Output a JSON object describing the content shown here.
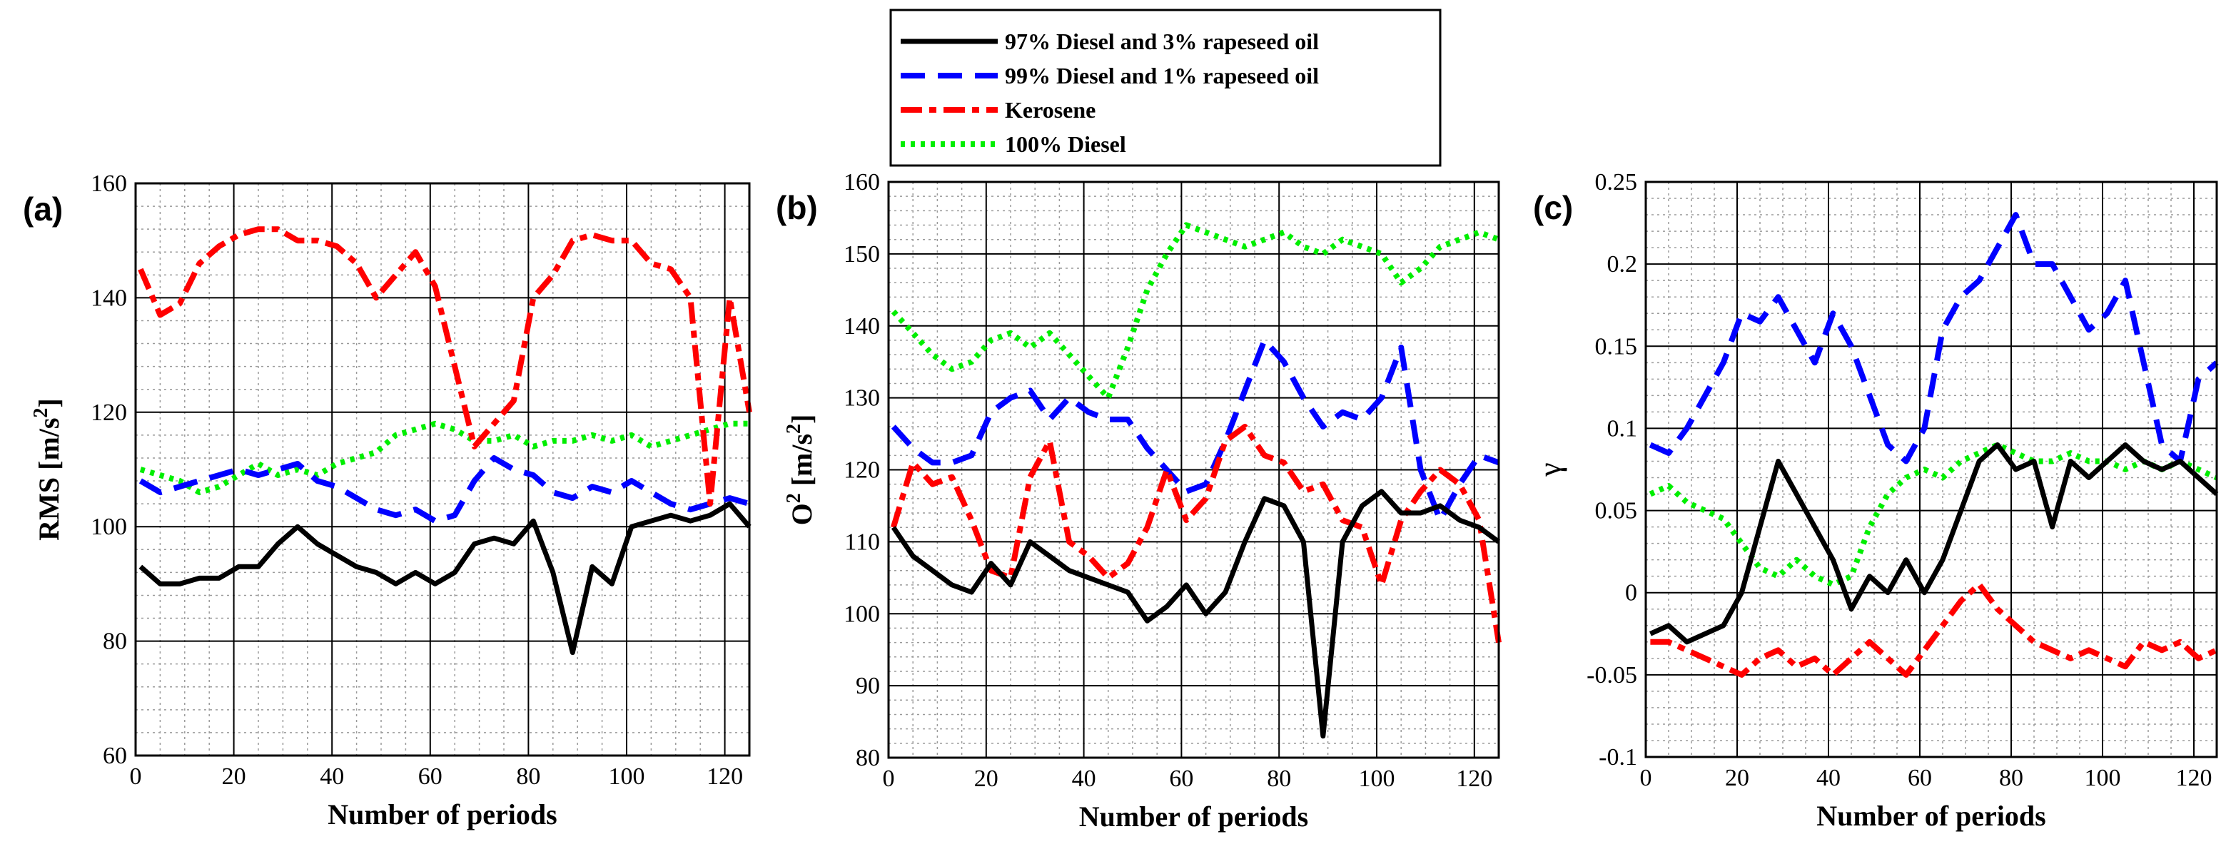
{
  "colors": {
    "diesel97": "#000000",
    "diesel99": "#0000ff",
    "kerosene": "#ff0000",
    "diesel100": "#00ee00"
  },
  "legend": [
    {
      "key": "diesel97",
      "label": "97% Diesel and 3% rapeseed oil",
      "style": "solid"
    },
    {
      "key": "diesel99",
      "label": "99% Diesel and 1% rapeseed oil",
      "style": "dashed"
    },
    {
      "key": "kerosene",
      "label": "Kerosene",
      "style": "dashdot"
    },
    {
      "key": "diesel100",
      "label": "100% Diesel",
      "style": "dotted"
    }
  ],
  "chart_data": [
    {
      "id": "a",
      "panel_label": "(a)",
      "type": "line",
      "xlabel": "Number of periods",
      "ylabel": "RMS [m/s",
      "ylabel_sup": "2",
      "ylabel_close": "]",
      "xlim": [
        0,
        125
      ],
      "ylim": [
        60,
        160
      ],
      "xticks": [
        0,
        20,
        40,
        60,
        80,
        100,
        120
      ],
      "yticks": [
        60,
        80,
        100,
        120,
        140,
        160
      ],
      "x": [
        1,
        5,
        9,
        13,
        17,
        21,
        25,
        29,
        33,
        37,
        41,
        45,
        49,
        53,
        57,
        61,
        65,
        69,
        73,
        77,
        81,
        85,
        89,
        93,
        97,
        101,
        105,
        109,
        113,
        117,
        121,
        125
      ],
      "series": [
        {
          "key": "diesel97",
          "name": "97% Diesel and 3% rapeseed oil",
          "values": [
            93,
            90,
            90,
            91,
            91,
            93,
            93,
            97,
            100,
            97,
            95,
            93,
            92,
            90,
            92,
            90,
            92,
            97,
            98,
            97,
            101,
            92,
            78,
            93,
            90,
            100,
            101,
            102,
            101,
            102,
            104,
            100
          ]
        },
        {
          "key": "diesel99",
          "name": "99% Diesel and 1% rapeseed oil",
          "values": [
            108,
            106,
            107,
            108,
            109,
            110,
            109,
            110,
            111,
            108,
            107,
            105,
            103,
            102,
            103,
            101,
            102,
            108,
            112,
            110,
            109,
            106,
            105,
            107,
            106,
            108,
            106,
            104,
            103,
            104,
            105,
            104
          ]
        },
        {
          "key": "kerosene",
          "name": "Kerosene",
          "values": [
            145,
            137,
            139,
            146,
            149,
            151,
            152,
            152,
            150,
            150,
            149,
            146,
            140,
            144,
            148,
            142,
            128,
            114,
            118,
            122,
            140,
            144,
            150,
            151,
            150,
            150,
            146,
            145,
            140,
            104,
            140,
            120
          ]
        },
        {
          "key": "diesel100",
          "name": "100% Diesel",
          "values": [
            110,
            109,
            108,
            106,
            107,
            109,
            111,
            109,
            110,
            109,
            111,
            112,
            113,
            116,
            117,
            118,
            117,
            115,
            115,
            116,
            114,
            115,
            115,
            116,
            115,
            116,
            114,
            115,
            116,
            117,
            118,
            118
          ]
        }
      ]
    },
    {
      "id": "b",
      "panel_label": "(b)",
      "type": "line",
      "xlabel": "Number of periods",
      "ylabel": "O",
      "ylabel_sup": "2",
      "ylabel_mid": " [m/s",
      "ylabel_sup2": "2",
      "ylabel_close": "]",
      "xlim": [
        0,
        125
      ],
      "ylim": [
        80,
        160
      ],
      "xticks": [
        0,
        20,
        40,
        60,
        80,
        100,
        120
      ],
      "yticks": [
        80,
        90,
        100,
        110,
        120,
        130,
        140,
        150,
        160
      ],
      "x": [
        1,
        5,
        9,
        13,
        17,
        21,
        25,
        29,
        33,
        37,
        41,
        45,
        49,
        53,
        57,
        61,
        65,
        69,
        73,
        77,
        81,
        85,
        89,
        93,
        97,
        101,
        105,
        109,
        113,
        117,
        121,
        125
      ],
      "series": [
        {
          "key": "diesel97",
          "name": "97% Diesel and 3% rapeseed oil",
          "values": [
            112,
            108,
            106,
            104,
            103,
            107,
            104,
            110,
            108,
            106,
            105,
            104,
            103,
            99,
            101,
            104,
            100,
            103,
            110,
            116,
            115,
            110,
            83,
            110,
            115,
            117,
            114,
            114,
            115,
            113,
            112,
            110
          ]
        },
        {
          "key": "diesel99",
          "name": "99% Diesel and 1% rapeseed oil",
          "values": [
            126,
            123,
            121,
            121,
            122,
            128,
            130,
            131,
            127,
            130,
            128,
            127,
            127,
            123,
            120,
            117,
            118,
            124,
            131,
            138,
            135,
            130,
            126,
            128,
            127,
            130,
            137,
            120,
            113,
            118,
            122,
            121
          ]
        },
        {
          "key": "kerosene",
          "name": "Kerosene",
          "values": [
            112,
            121,
            118,
            119,
            113,
            106,
            105,
            119,
            124,
            110,
            108,
            105,
            107,
            112,
            120,
            113,
            116,
            124,
            126,
            122,
            121,
            117,
            118,
            113,
            112,
            104,
            113,
            117,
            120,
            118,
            113,
            96
          ]
        },
        {
          "key": "diesel100",
          "name": "100% Diesel",
          "values": [
            142,
            139,
            136,
            134,
            135,
            138,
            139,
            137,
            139,
            136,
            133,
            130,
            137,
            145,
            150,
            154,
            153,
            152,
            151,
            152,
            153,
            151,
            150,
            152,
            151,
            150,
            146,
            148,
            151,
            152,
            153,
            152
          ]
        }
      ]
    },
    {
      "id": "c",
      "panel_label": "(c)",
      "type": "line",
      "xlabel": "Number of periods",
      "ylabel": "γ",
      "xlim": [
        0,
        125
      ],
      "ylim": [
        -0.1,
        0.25
      ],
      "xticks": [
        0,
        20,
        40,
        60,
        80,
        100,
        120
      ],
      "yticks": [
        -0.1,
        -0.05,
        0,
        0.05,
        0.1,
        0.15,
        0.2,
        0.25
      ],
      "x": [
        1,
        5,
        9,
        13,
        17,
        21,
        25,
        29,
        33,
        37,
        41,
        45,
        49,
        53,
        57,
        61,
        65,
        69,
        73,
        77,
        81,
        85,
        89,
        93,
        97,
        101,
        105,
        109,
        113,
        117,
        121,
        125
      ],
      "series": [
        {
          "key": "diesel97",
          "name": "97% Diesel and 3% rapeseed oil",
          "values": [
            -0.025,
            -0.02,
            -0.03,
            -0.025,
            -0.02,
            0,
            0.04,
            0.08,
            0.06,
            0.04,
            0.02,
            -0.01,
            0.01,
            0,
            0.02,
            0,
            0.02,
            0.05,
            0.08,
            0.09,
            0.075,
            0.08,
            0.04,
            0.08,
            0.07,
            0.08,
            0.09,
            0.08,
            0.075,
            0.08,
            0.07,
            0.06
          ]
        },
        {
          "key": "diesel99",
          "name": "99% Diesel and 1% rapeseed oil",
          "values": [
            0.09,
            0.085,
            0.1,
            0.12,
            0.14,
            0.17,
            0.165,
            0.18,
            0.16,
            0.14,
            0.17,
            0.15,
            0.12,
            0.09,
            0.08,
            0.1,
            0.16,
            0.18,
            0.19,
            0.21,
            0.23,
            0.2,
            0.2,
            0.18,
            0.16,
            0.17,
            0.19,
            0.14,
            0.09,
            0.08,
            0.13,
            0.14
          ]
        },
        {
          "key": "kerosene",
          "name": "Kerosene",
          "values": [
            -0.03,
            -0.03,
            -0.035,
            -0.04,
            -0.045,
            -0.05,
            -0.04,
            -0.035,
            -0.045,
            -0.04,
            -0.05,
            -0.04,
            -0.03,
            -0.04,
            -0.05,
            -0.035,
            -0.02,
            -0.005,
            0.005,
            -0.01,
            -0.02,
            -0.03,
            -0.035,
            -0.04,
            -0.035,
            -0.04,
            -0.045,
            -0.03,
            -0.035,
            -0.03,
            -0.04,
            -0.035
          ]
        },
        {
          "key": "diesel100",
          "name": "100% Diesel",
          "values": [
            0.06,
            0.065,
            0.055,
            0.05,
            0.045,
            0.03,
            0.015,
            0.01,
            0.02,
            0.01,
            0.005,
            0.01,
            0.04,
            0.06,
            0.07,
            0.075,
            0.07,
            0.08,
            0.085,
            0.09,
            0.085,
            0.08,
            0.08,
            0.085,
            0.08,
            0.08,
            0.075,
            0.08,
            0.075,
            0.08,
            0.075,
            0.07
          ]
        }
      ]
    }
  ]
}
